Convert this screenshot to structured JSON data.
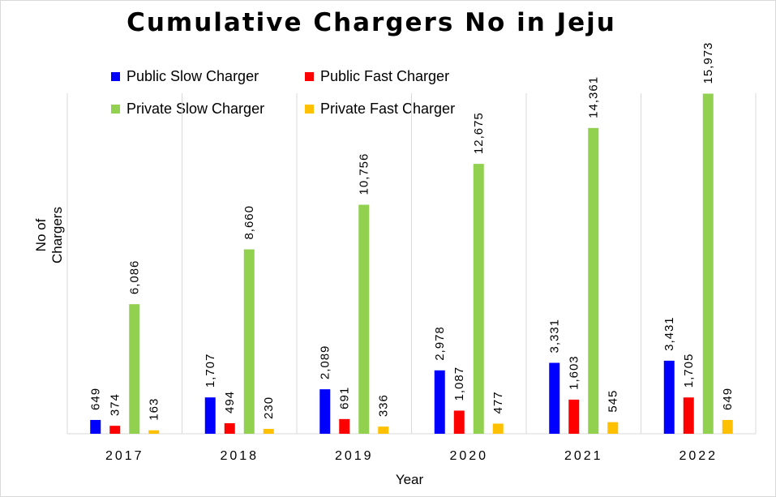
{
  "chart_data": {
    "type": "bar",
    "title": "Cumulative Chargers No in Jeju",
    "xlabel": "Year",
    "ylabel": "No of Chargers",
    "categories": [
      "2017",
      "2018",
      "2019",
      "2020",
      "2021",
      "2022"
    ],
    "series": [
      {
        "name": "Public Slow Charger",
        "color": "#0000ff",
        "values": [
          649,
          1707,
          2089,
          2978,
          3331,
          3431
        ],
        "labels": [
          "649",
          "1,707",
          "2,089",
          "2,978",
          "3,331",
          "3,431"
        ]
      },
      {
        "name": "Public Fast Charger",
        "color": "#ff0000",
        "values": [
          374,
          494,
          691,
          1087,
          1603,
          1705
        ],
        "labels": [
          "374",
          "494",
          "691",
          "1,087",
          "1,603",
          "1,705"
        ]
      },
      {
        "name": "Private Slow Charger",
        "color": "#92d050",
        "values": [
          6086,
          8660,
          10756,
          12675,
          14361,
          15973
        ],
        "labels": [
          "6,086",
          "8,660",
          "10,756",
          "12,675",
          "14,361",
          "15,973"
        ]
      },
      {
        "name": "Private Fast Charger",
        "color": "#ffc000",
        "values": [
          163,
          230,
          336,
          477,
          545,
          649
        ],
        "labels": [
          "163",
          "230",
          "336",
          "477",
          "545",
          "649"
        ]
      }
    ],
    "ylim": [
      0,
      18000
    ],
    "grid": "vertical category separators",
    "legend_position": "top-left"
  }
}
